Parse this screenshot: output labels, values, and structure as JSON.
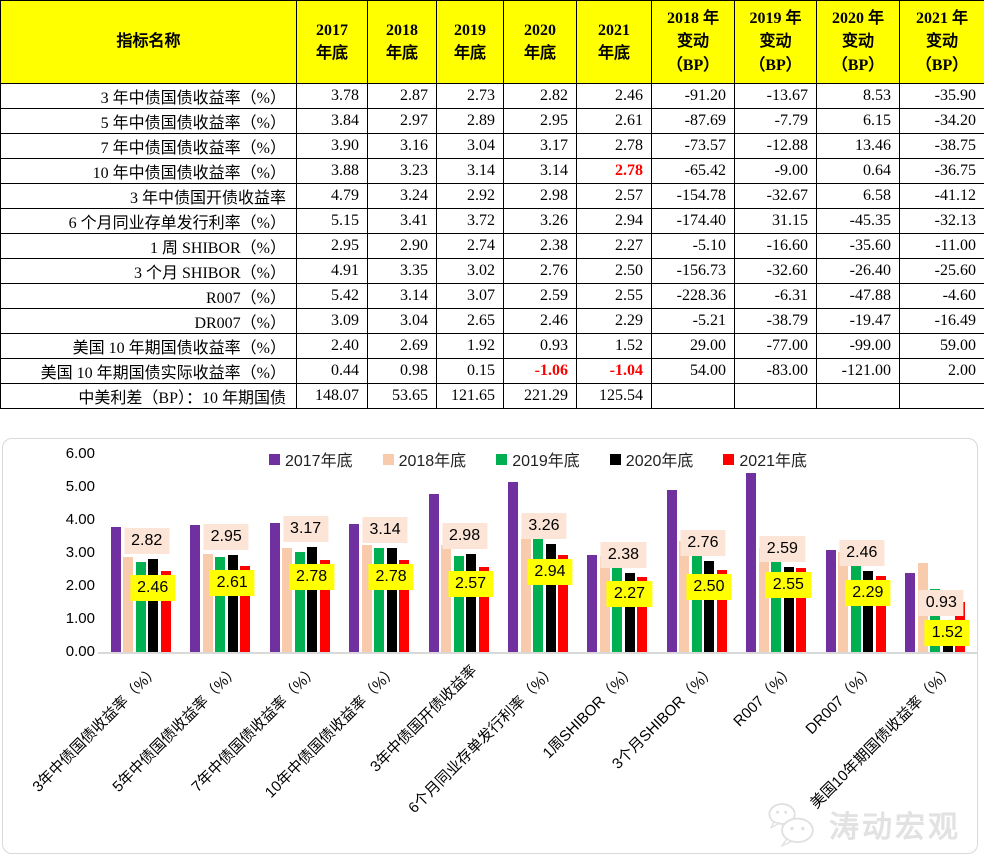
{
  "colors": {
    "table_header_bg": "#FFFF00",
    "highlight_red": "#FF0000",
    "axis_line": "#D9D9D9",
    "label_bg_2020": "#FCE4D6",
    "label_bg_2021": "#FFFF00"
  },
  "table": {
    "header": {
      "indicator": "指标名称",
      "year_cols": [
        "2017\n年底",
        "2018\n年底",
        "2019\n年底",
        "2020\n年底",
        "2021\n年底"
      ],
      "change_cols": [
        "2018 年\n变动\n（BP）",
        "2019 年\n变动\n（BP）",
        "2020 年\n变动\n（BP）",
        "2021 年\n变动\n（BP）"
      ]
    },
    "rows": [
      {
        "name": "3 年中债国债收益率（%）",
        "values": [
          "3.78",
          "2.87",
          "2.73",
          "2.82",
          "2.46",
          "-91.20",
          "-13.67",
          "8.53",
          "-35.90"
        ],
        "red_indices": []
      },
      {
        "name": "5 年中债国债收益率（%）",
        "values": [
          "3.84",
          "2.97",
          "2.89",
          "2.95",
          "2.61",
          "-87.69",
          "-7.79",
          "6.15",
          "-34.20"
        ],
        "red_indices": []
      },
      {
        "name": "7 年中债国债收益率（%）",
        "values": [
          "3.90",
          "3.16",
          "3.04",
          "3.17",
          "2.78",
          "-73.57",
          "-12.88",
          "13.46",
          "-38.75"
        ],
        "red_indices": []
      },
      {
        "name": "10 年中债国债收益率（%）",
        "values": [
          "3.88",
          "3.23",
          "3.14",
          "3.14",
          "2.78",
          "-65.42",
          "-9.00",
          "0.64",
          "-36.75"
        ],
        "red_indices": [
          4
        ]
      },
      {
        "name": "3 年中债国开债收益率",
        "values": [
          "4.79",
          "3.24",
          "2.92",
          "2.98",
          "2.57",
          "-154.78",
          "-32.67",
          "6.58",
          "-41.12"
        ],
        "red_indices": []
      },
      {
        "name": "6 个月同业存单发行利率（%）",
        "values": [
          "5.15",
          "3.41",
          "3.72",
          "3.26",
          "2.94",
          "-174.40",
          "31.15",
          "-45.35",
          "-32.13"
        ],
        "red_indices": []
      },
      {
        "name": "1 周 SHIBOR（%）",
        "values": [
          "2.95",
          "2.90",
          "2.74",
          "2.38",
          "2.27",
          "-5.10",
          "-16.60",
          "-35.60",
          "-11.00"
        ],
        "red_indices": []
      },
      {
        "name": "3 个月 SHIBOR（%）",
        "values": [
          "4.91",
          "3.35",
          "3.02",
          "2.76",
          "2.50",
          "-156.73",
          "-32.60",
          "-26.40",
          "-25.60"
        ],
        "red_indices": []
      },
      {
        "name": "R007（%）",
        "values": [
          "5.42",
          "3.14",
          "3.07",
          "2.59",
          "2.55",
          "-228.36",
          "-6.31",
          "-47.88",
          "-4.60"
        ],
        "red_indices": []
      },
      {
        "name": "DR007（%）",
        "values": [
          "3.09",
          "3.04",
          "2.65",
          "2.46",
          "2.29",
          "-5.21",
          "-38.79",
          "-19.47",
          "-16.49"
        ],
        "red_indices": []
      },
      {
        "name": "美国 10 年期国债收益率（%）",
        "values": [
          "2.40",
          "2.69",
          "1.92",
          "0.93",
          "1.52",
          "29.00",
          "-77.00",
          "-99.00",
          "59.00"
        ],
        "red_indices": []
      },
      {
        "name": "美国 10 年期国债实际收益率（%）",
        "values": [
          "0.44",
          "0.98",
          "0.15",
          "-1.06",
          "-1.04",
          "54.00",
          "-83.00",
          "-121.00",
          "2.00"
        ],
        "red_indices": [
          3,
          4
        ]
      },
      {
        "name": "中美利差（BP）：10 年期国债",
        "values": [
          "148.07",
          "53.65",
          "121.65",
          "221.29",
          "125.54",
          "",
          "",
          "",
          ""
        ],
        "red_indices": []
      }
    ]
  },
  "chart_data": {
    "type": "bar",
    "title": "",
    "xlabel": "",
    "ylabel": "",
    "ylim": [
      0,
      6
    ],
    "ytick_labels": [
      "0.00",
      "1.00",
      "2.00",
      "3.00",
      "4.00",
      "5.00",
      "6.00"
    ],
    "grid": false,
    "legend_position": "top",
    "categories": [
      "3年中债国债收益率（%）",
      "5年中债国债收益率（%）",
      "7年中债国债收益率（%）",
      "10年中债国债收益率（%）",
      "3年中债国开债收益率",
      "6个月同业存单发行利率（%）",
      "1周SHIBOR（%）",
      "3个月SHIBOR（%）",
      "R007（%）",
      "DR007（%）",
      "美国10年期国债收益率（%）"
    ],
    "series": [
      {
        "name": "2017年底",
        "color": "#7030A0",
        "values": [
          3.78,
          3.84,
          3.9,
          3.88,
          4.79,
          5.15,
          2.95,
          4.91,
          5.42,
          3.09,
          2.4
        ]
      },
      {
        "name": "2018年底",
        "color": "#F8CBAD",
        "values": [
          2.87,
          2.97,
          3.16,
          3.23,
          3.24,
          3.41,
          2.9,
          3.35,
          3.14,
          3.04,
          2.69
        ]
      },
      {
        "name": "2019年底",
        "color": "#00B050",
        "values": [
          2.73,
          2.89,
          3.04,
          3.14,
          2.92,
          3.72,
          2.74,
          3.02,
          3.07,
          2.65,
          1.92
        ]
      },
      {
        "name": "2020年底",
        "color": "#000000",
        "values": [
          2.82,
          2.95,
          3.17,
          3.14,
          2.98,
          3.26,
          2.38,
          2.76,
          2.59,
          2.46,
          0.93
        ],
        "label_bg": "#FCE4D6"
      },
      {
        "name": "2021年底",
        "color": "#FF0000",
        "values": [
          2.46,
          2.61,
          2.78,
          2.78,
          2.57,
          2.94,
          2.27,
          2.5,
          2.55,
          2.29,
          1.52
        ],
        "label_bg": "#FFFF00"
      }
    ],
    "labeled_series": [
      "2020年底",
      "2021年底"
    ]
  },
  "watermark": {
    "text": "涛动宏观"
  }
}
